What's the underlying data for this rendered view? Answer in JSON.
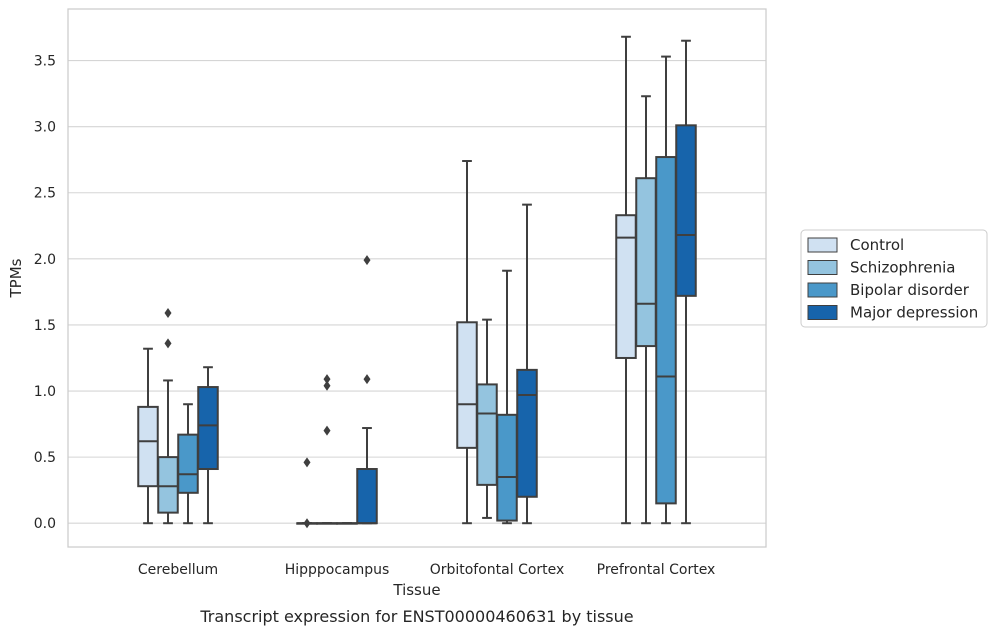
{
  "chart_data": {
    "type": "box",
    "caption": "Transcript expression for ENST00000460631 by tissue",
    "xlabel": "Tissue",
    "ylabel": "TPMs",
    "categories": [
      "Cerebellum",
      "Hipppocampus",
      "Orbitofontal Cortex",
      "Prefrontal Cortex"
    ],
    "ylim": [
      -0.18,
      3.89
    ],
    "yticks": [
      0.0,
      0.5,
      1.0,
      1.5,
      2.0,
      2.5,
      3.0,
      3.5
    ],
    "ytick_labels": [
      "0.0",
      "0.5",
      "1.0",
      "1.5",
      "2.0",
      "2.5",
      "3.0",
      "3.5"
    ],
    "grid": "horizontal",
    "legend_position": "right",
    "series": [
      {
        "name": "Control",
        "color": "#d0e1f2",
        "boxes": [
          {
            "min": 0.0,
            "q1": 0.28,
            "median": 0.62,
            "q3": 0.88,
            "max": 1.32,
            "outliers": []
          },
          {
            "min": 0.0,
            "q1": 0.0,
            "median": 0.0,
            "q3": 0.0,
            "max": 0.0,
            "outliers": [
              0.0,
              0.46
            ]
          },
          {
            "min": 0.0,
            "q1": 0.57,
            "median": 0.9,
            "q3": 1.52,
            "max": 2.74,
            "outliers": []
          },
          {
            "min": 0.0,
            "q1": 1.25,
            "median": 2.16,
            "q3": 2.33,
            "max": 3.68,
            "outliers": []
          }
        ]
      },
      {
        "name": "Schizophrenia",
        "color": "#94c4df",
        "boxes": [
          {
            "min": 0.0,
            "q1": 0.08,
            "median": 0.28,
            "q3": 0.5,
            "max": 1.08,
            "outliers": [
              1.36,
              1.59
            ]
          },
          {
            "min": 0.0,
            "q1": 0.0,
            "median": 0.0,
            "q3": 0.0,
            "max": 0.0,
            "outliers": [
              0.7,
              1.04,
              1.09
            ]
          },
          {
            "min": 0.04,
            "q1": 0.29,
            "median": 0.83,
            "q3": 1.05,
            "max": 1.54,
            "outliers": []
          },
          {
            "min": 0.0,
            "q1": 1.34,
            "median": 1.66,
            "q3": 2.61,
            "max": 3.23,
            "outliers": []
          }
        ]
      },
      {
        "name": "Bipolar disorder",
        "color": "#4a98c9",
        "boxes": [
          {
            "min": 0.0,
            "q1": 0.23,
            "median": 0.37,
            "q3": 0.67,
            "max": 0.9,
            "outliers": []
          },
          {
            "min": 0.0,
            "q1": 0.0,
            "median": 0.0,
            "q3": 0.0,
            "max": 0.0,
            "outliers": []
          },
          {
            "min": 0.0,
            "q1": 0.02,
            "median": 0.35,
            "q3": 0.82,
            "max": 1.91,
            "outliers": []
          },
          {
            "min": 0.0,
            "q1": 0.15,
            "median": 1.11,
            "q3": 2.77,
            "max": 3.53,
            "outliers": []
          }
        ]
      },
      {
        "name": "Major depression",
        "color": "#1764ab",
        "boxes": [
          {
            "min": 0.0,
            "q1": 0.41,
            "median": 0.74,
            "q3": 1.03,
            "max": 1.18,
            "outliers": []
          },
          {
            "min": 0.0,
            "q1": 0.0,
            "median": 0.0,
            "q3": 0.41,
            "max": 0.72,
            "outliers": [
              1.09,
              1.99
            ]
          },
          {
            "min": 0.0,
            "q1": 0.2,
            "median": 0.97,
            "q3": 1.16,
            "max": 2.41,
            "outliers": []
          },
          {
            "min": 0.0,
            "q1": 1.72,
            "median": 2.18,
            "q3": 3.01,
            "max": 3.65,
            "outliers": []
          }
        ]
      }
    ]
  }
}
